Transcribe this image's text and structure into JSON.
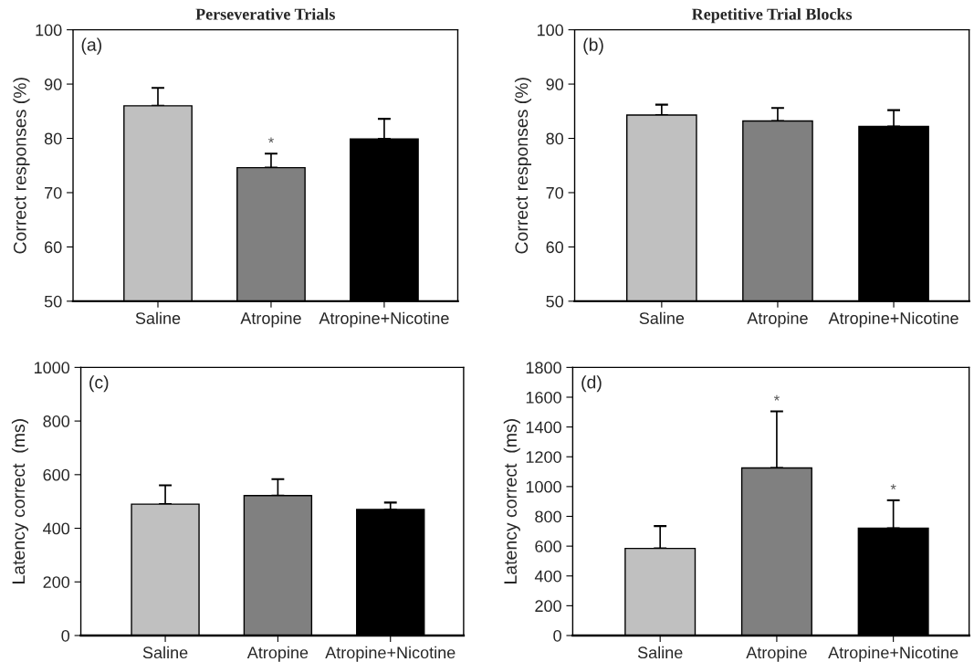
{
  "chart_data": [
    {
      "type": "bar",
      "title": "Perseverative Trials",
      "ylabel": "Correct responses (%)",
      "categories": [
        "Saline",
        "Atropine",
        "Atropine+Nicotine"
      ],
      "values": [
        86,
        74.6,
        79.9
      ],
      "colors": [
        "#c0c0c0",
        "#808080",
        "#000000"
      ],
      "errors": [
        [
          86,
          89.3
        ],
        [
          74.6,
          77.2
        ],
        [
          79.9,
          83.6
        ]
      ],
      "ylim": [
        50,
        100
      ],
      "yticks": [
        50,
        60,
        70,
        80,
        90,
        100
      ],
      "grid": false,
      "annotations": [
        "(a)",
        {
          "text": "*",
          "x": "Atropine",
          "y": 77.2
        }
      ]
    },
    {
      "type": "bar",
      "title": "Repetitive Trial Blocks",
      "ylabel": "Correct responses (%)",
      "categories": [
        "Saline",
        "Atropine",
        "Atropine+Nicotine"
      ],
      "values": [
        84.3,
        83.2,
        82.2
      ],
      "colors": [
        "#c0c0c0",
        "#808080",
        "#000000"
      ],
      "errors": [
        [
          84.3,
          86.2
        ],
        [
          83.2,
          85.6
        ],
        [
          82.2,
          85.2
        ]
      ],
      "ylim": [
        50,
        100
      ],
      "yticks": [
        50,
        60,
        70,
        80,
        90,
        100
      ],
      "grid": false,
      "annotations": [
        "(b)"
      ]
    },
    {
      "type": "bar",
      "ylabel": "Latency correct  (ms)",
      "categories": [
        "Saline",
        "Atropine",
        "Atropine+Nicotine"
      ],
      "values": [
        490,
        522,
        470
      ],
      "colors": [
        "#c0c0c0",
        "#808080",
        "#000000"
      ],
      "errors": [
        [
          490,
          560
        ],
        [
          522,
          583
        ],
        [
          470,
          496
        ]
      ],
      "ylim": [
        0,
        1000
      ],
      "yticks": [
        0,
        200,
        400,
        600,
        800,
        1000
      ],
      "grid": false,
      "annotations": [
        "(c)"
      ]
    },
    {
      "type": "bar",
      "ylabel": "Latency correct  (ms)",
      "categories": [
        "Saline",
        "Atropine",
        "Atropine+Nicotine"
      ],
      "values": [
        585,
        1125,
        720
      ],
      "colors": [
        "#c0c0c0",
        "#808080",
        "#000000"
      ],
      "errors": [
        [
          585,
          735
        ],
        [
          1125,
          1505
        ],
        [
          720,
          908
        ]
      ],
      "ylim": [
        0,
        1800
      ],
      "yticks": [
        0,
        200,
        400,
        600,
        800,
        1000,
        1200,
        1400,
        1600,
        1800
      ],
      "grid": false,
      "annotations": [
        "(d)",
        {
          "text": "*",
          "x": "Atropine",
          "y": 1505
        },
        {
          "text": "*",
          "x": "Atropine+Nicotine",
          "y": 908
        }
      ]
    }
  ]
}
